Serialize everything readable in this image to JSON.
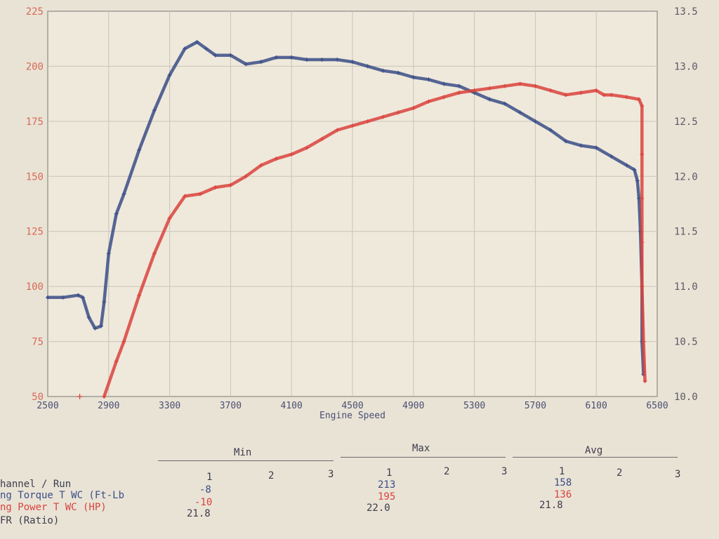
{
  "chart_data": {
    "type": "line",
    "xlabel": "Engine Speed",
    "xlim": [
      2500,
      6500
    ],
    "x_ticks": [
      "2500",
      "2900",
      "3300",
      "3700",
      "4100",
      "4500",
      "4900",
      "5300",
      "5700",
      "6100",
      "6500"
    ],
    "ylim_left": [
      50,
      225
    ],
    "left_ticks": [
      "50",
      "75",
      "100",
      "125",
      "150",
      "175",
      "200",
      "225"
    ],
    "ylim_right": [
      10.0,
      13.5
    ],
    "right_ticks": [
      "10.0",
      "10.5",
      "11.0",
      "11.5",
      "12.0",
      "12.5",
      "13.0",
      "13.5"
    ],
    "grid": true,
    "series": [
      {
        "name": "Torque",
        "color": "#3a4d86",
        "axis": "left",
        "points": [
          [
            2500,
            95
          ],
          [
            2600,
            95
          ],
          [
            2700,
            96
          ],
          [
            2730,
            95
          ],
          [
            2770,
            86
          ],
          [
            2810,
            81
          ],
          [
            2850,
            82
          ],
          [
            2870,
            93
          ],
          [
            2900,
            115
          ],
          [
            2950,
            133
          ],
          [
            3000,
            142
          ],
          [
            3100,
            162
          ],
          [
            3200,
            180
          ],
          [
            3300,
            196
          ],
          [
            3400,
            208
          ],
          [
            3480,
            211
          ],
          [
            3540,
            208
          ],
          [
            3600,
            205
          ],
          [
            3700,
            205
          ],
          [
            3800,
            201
          ],
          [
            3900,
            202
          ],
          [
            4000,
            204
          ],
          [
            4100,
            204
          ],
          [
            4200,
            203
          ],
          [
            4300,
            203
          ],
          [
            4400,
            203
          ],
          [
            4500,
            202
          ],
          [
            4600,
            200
          ],
          [
            4700,
            198
          ],
          [
            4800,
            197
          ],
          [
            4900,
            195
          ],
          [
            5000,
            194
          ],
          [
            5100,
            192
          ],
          [
            5200,
            191
          ],
          [
            5300,
            188
          ],
          [
            5400,
            185
          ],
          [
            5500,
            183
          ],
          [
            5600,
            179
          ],
          [
            5700,
            175
          ],
          [
            5800,
            171
          ],
          [
            5900,
            166
          ],
          [
            6000,
            164
          ],
          [
            6100,
            163
          ],
          [
            6200,
            159
          ],
          [
            6300,
            155
          ],
          [
            6350,
            153
          ],
          [
            6370,
            148
          ],
          [
            6380,
            140
          ],
          [
            6390,
            125
          ],
          [
            6400,
            100
          ],
          [
            6400,
            75
          ],
          [
            6410,
            60
          ]
        ]
      },
      {
        "name": "Power",
        "color": "#d9433c",
        "axis": "left",
        "points": [
          [
            2870,
            50
          ],
          [
            2950,
            66
          ],
          [
            3000,
            75
          ],
          [
            3100,
            96
          ],
          [
            3200,
            115
          ],
          [
            3300,
            131
          ],
          [
            3400,
            141
          ],
          [
            3500,
            142
          ],
          [
            3600,
            145
          ],
          [
            3700,
            146
          ],
          [
            3800,
            150
          ],
          [
            3900,
            155
          ],
          [
            4000,
            158
          ],
          [
            4100,
            160
          ],
          [
            4200,
            163
          ],
          [
            4300,
            167
          ],
          [
            4400,
            171
          ],
          [
            4500,
            173
          ],
          [
            4600,
            175
          ],
          [
            4700,
            177
          ],
          [
            4800,
            179
          ],
          [
            4900,
            181
          ],
          [
            5000,
            184
          ],
          [
            5100,
            186
          ],
          [
            5200,
            188
          ],
          [
            5300,
            189
          ],
          [
            5400,
            190
          ],
          [
            5500,
            191
          ],
          [
            5600,
            192
          ],
          [
            5700,
            191
          ],
          [
            5800,
            189
          ],
          [
            5900,
            187
          ],
          [
            6000,
            188
          ],
          [
            6100,
            189
          ],
          [
            6150,
            187
          ],
          [
            6200,
            187
          ],
          [
            6300,
            186
          ],
          [
            6380,
            185
          ],
          [
            6400,
            182
          ],
          [
            6400,
            160
          ],
          [
            6400,
            140
          ],
          [
            6400,
            120
          ],
          [
            6400,
            100
          ],
          [
            6410,
            75
          ],
          [
            6420,
            57
          ]
        ]
      }
    ],
    "stray_points": [
      {
        "x": 2710,
        "y": 50,
        "color": "#d9433c"
      }
    ]
  },
  "summary": {
    "group_headers": [
      "Min",
      "Max",
      "Avg"
    ],
    "run_numbers": [
      "1",
      "2",
      "3"
    ],
    "channel_header": "hannel / Run",
    "rows": [
      {
        "label": "ng Torque T WC (Ft-Lb",
        "min": "-8",
        "max": "213",
        "avg": "158",
        "color": "#3a4d86"
      },
      {
        "label": "ng Power T WC (HP)",
        "min": "-10",
        "max": "195",
        "avg": "136",
        "color": "#d9433c"
      },
      {
        "label": "FR (Ratio)",
        "min": "21.8",
        "max": "22.0",
        "avg": "21.8",
        "color": "#3c3c4a"
      }
    ]
  }
}
